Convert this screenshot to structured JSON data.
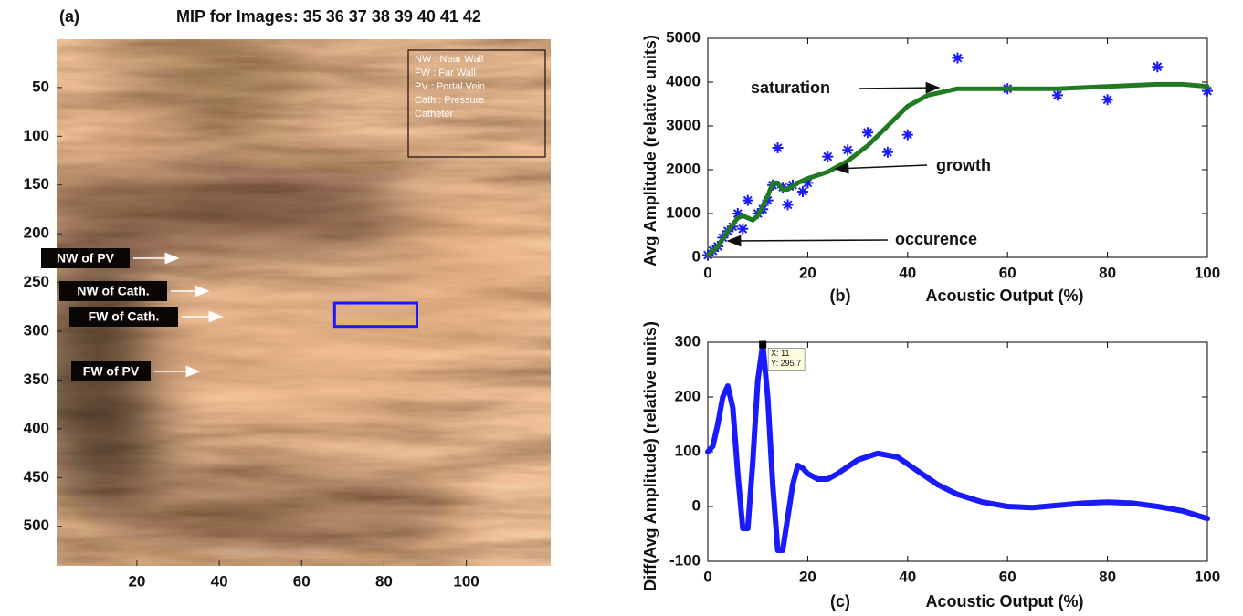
{
  "chart_data": [
    {
      "type": "image",
      "panel_label": "(a)",
      "title": "MIP for Images: 35 36 37 38 39 40 41 42",
      "xlim": [
        0.5,
        120.5
      ],
      "ylim": [
        540.5,
        0.5
      ],
      "xticks": [
        20,
        40,
        60,
        80,
        100
      ],
      "yticks": [
        50,
        100,
        150,
        200,
        250,
        300,
        350,
        400,
        450,
        500
      ],
      "roi": {
        "x": [
          68,
          88
        ],
        "y": [
          271,
          295
        ],
        "color": "#1a1aff"
      },
      "annotations": [
        "NW of PV",
        "NW of Cath.",
        "FW of Cath.",
        "FW of PV"
      ],
      "legend_text": [
        "NW : Near Wall",
        "FW : Far Wall",
        "PV : Portal Vein",
        "Cath.: Pressure",
        "Catheter"
      ]
    },
    {
      "type": "combo",
      "panel_label": "(b)",
      "xlabel": "Acoustic Output (%)",
      "ylabel": "Avg Amplitude (relative units)",
      "xlim": [
        0,
        100
      ],
      "ylim": [
        0,
        5000
      ],
      "xticks": [
        0,
        20,
        40,
        60,
        80,
        100
      ],
      "yticks": [
        0,
        1000,
        2000,
        3000,
        4000,
        5000
      ],
      "series": [
        {
          "type": "scatter",
          "color": "#1a1aff",
          "x": [
            0,
            1,
            2,
            3,
            4,
            5,
            6,
            7,
            8,
            10,
            11,
            12,
            13,
            14,
            15,
            16,
            17,
            19,
            20,
            24,
            28,
            32,
            36,
            40,
            50,
            60,
            70,
            80,
            90,
            100
          ],
          "values": [
            50,
            150,
            250,
            450,
            600,
            700,
            1000,
            650,
            1300,
            1000,
            1100,
            1300,
            1650,
            2500,
            1600,
            1200,
            1650,
            1500,
            1700,
            2300,
            2450,
            2850,
            2400,
            2800,
            4550,
            3850,
            3700,
            3600,
            4350,
            3800
          ]
        },
        {
          "type": "line",
          "color": "#217a21",
          "x": [
            0,
            2,
            4,
            6,
            7,
            8,
            9,
            10,
            12,
            13,
            14,
            15,
            16,
            18,
            20,
            24,
            28,
            32,
            36,
            40,
            44,
            50,
            60,
            70,
            80,
            90,
            95,
            100
          ],
          "values": [
            50,
            250,
            600,
            900,
            950,
            900,
            850,
            950,
            1400,
            1700,
            1700,
            1550,
            1550,
            1700,
            1800,
            1950,
            2200,
            2550,
            3000,
            3450,
            3700,
            3850,
            3850,
            3850,
            3900,
            3950,
            3950,
            3900
          ]
        }
      ],
      "annotations": [
        "saturation",
        "growth",
        "occurence"
      ]
    },
    {
      "type": "line",
      "panel_label": "(c)",
      "xlabel": "Acoustic Output (%)",
      "ylabel": "Diff(Avg Amplitude) (relative units)",
      "xlim": [
        0,
        100
      ],
      "ylim": [
        -100,
        300
      ],
      "xticks": [
        0,
        20,
        40,
        60,
        80,
        100
      ],
      "yticks": [
        -100,
        0,
        100,
        200,
        300
      ],
      "series": [
        {
          "color": "#1a1aff",
          "x": [
            0,
            1,
            2,
            3,
            4,
            5,
            6,
            7,
            8,
            9,
            10,
            11,
            12,
            13,
            14,
            15,
            16,
            17,
            18,
            19,
            20,
            22,
            24,
            26,
            30,
            34,
            38,
            42,
            46,
            50,
            55,
            60,
            65,
            70,
            75,
            80,
            85,
            90,
            95,
            100
          ],
          "values": [
            100,
            110,
            150,
            200,
            220,
            180,
            60,
            -40,
            -40,
            80,
            230,
            295.7,
            200,
            40,
            -80,
            -80,
            -20,
            40,
            75,
            70,
            60,
            50,
            50,
            60,
            85,
            97,
            90,
            65,
            40,
            22,
            8,
            0,
            -2,
            2,
            6,
            8,
            6,
            0,
            -8,
            -22
          ]
        }
      ],
      "datatip": {
        "x": 11,
        "y": 295.7,
        "labels": [
          "X: 11",
          "Y: 295.7"
        ]
      }
    }
  ]
}
